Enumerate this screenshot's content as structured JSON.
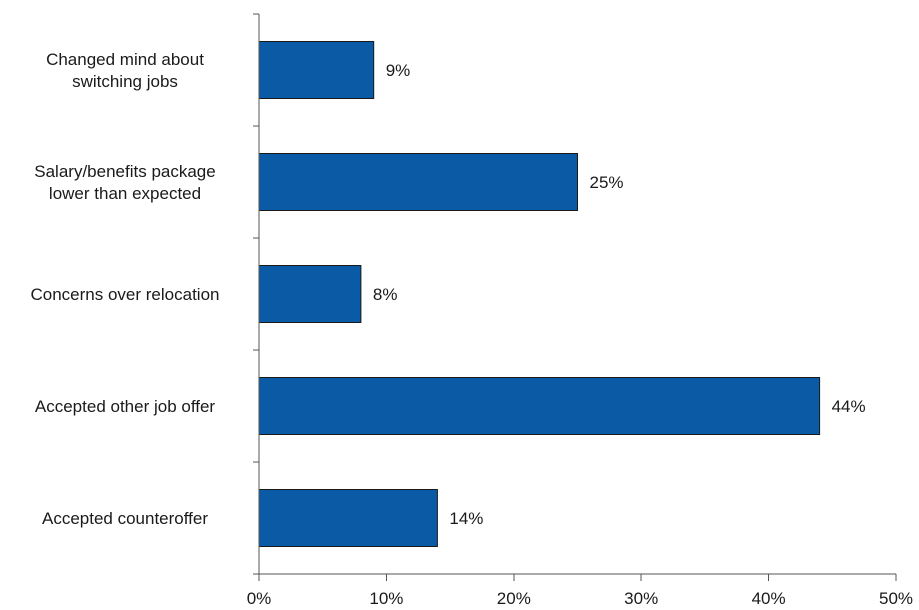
{
  "chart_data": {
    "type": "bar",
    "orientation": "horizontal",
    "categories": [
      [
        "Changed mind about",
        "switching jobs"
      ],
      [
        "Salary/benefits package",
        "lower than expected"
      ],
      [
        "Concerns over relocation"
      ],
      [
        "Accepted other job offer"
      ],
      [
        "Accepted counteroffer"
      ]
    ],
    "values": [
      9,
      25,
      8,
      44,
      14
    ],
    "data_labels": [
      "9%",
      "25%",
      "8%",
      "44%",
      "14%"
    ],
    "xlim": [
      0,
      50
    ],
    "xticks": [
      0,
      10,
      20,
      30,
      40,
      50
    ],
    "xtick_labels": [
      "0%",
      "10%",
      "20%",
      "30%",
      "40%",
      "50%"
    ],
    "title": "",
    "xlabel": "",
    "ylabel": "",
    "grid": false,
    "legend": "none",
    "colors": {
      "bar": "#0a5aa5",
      "bar_edge": "#1a1a1a",
      "axis": "#555555",
      "text": "#1a1a1a"
    }
  }
}
